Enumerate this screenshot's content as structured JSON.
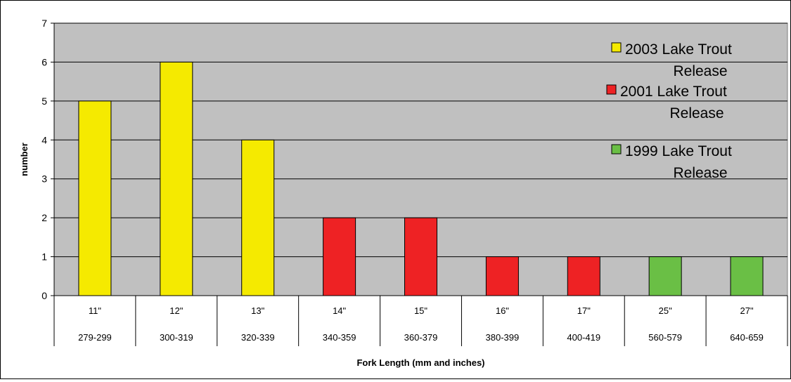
{
  "chart_data": {
    "type": "bar",
    "title": "",
    "xlabel": "Fork Length (mm and inches)",
    "ylabel": "number",
    "ylim": [
      0,
      7
    ],
    "yticks": [
      0,
      1,
      2,
      3,
      4,
      5,
      6,
      7
    ],
    "grid": true,
    "categories": [
      {
        "inches": "11\"",
        "mm": "279-299"
      },
      {
        "inches": "12\"",
        "mm": "300-319"
      },
      {
        "inches": "13\"",
        "mm": "320-339"
      },
      {
        "inches": "14\"",
        "mm": "340-359"
      },
      {
        "inches": "15\"",
        "mm": "360-379"
      },
      {
        "inches": "16\"",
        "mm": "380-399"
      },
      {
        "inches": "17\"",
        "mm": "400-419"
      },
      {
        "inches": "25\"",
        "mm": "560-579"
      },
      {
        "inches": "27\"",
        "mm": "640-659"
      }
    ],
    "values": [
      5,
      6,
      4,
      2,
      2,
      1,
      1,
      1,
      1
    ],
    "series_index": [
      0,
      0,
      0,
      1,
      1,
      1,
      1,
      2,
      2
    ],
    "series": [
      {
        "name": "2003 Lake Trout Release",
        "line1": "2003 Lake Trout",
        "line2": "Release",
        "color": "#f5ea00"
      },
      {
        "name": "2001 Lake Trout Release",
        "line1": "2001 Lake Trout",
        "line2": "Release",
        "color": "#ee2224"
      },
      {
        "name": "1999 Lake Trout Release",
        "line1": "1999 Lake Trout",
        "line2": "Release",
        "color": "#6abf45"
      }
    ],
    "legend_position": "top-right",
    "plot_background": "#c0c0c0"
  }
}
